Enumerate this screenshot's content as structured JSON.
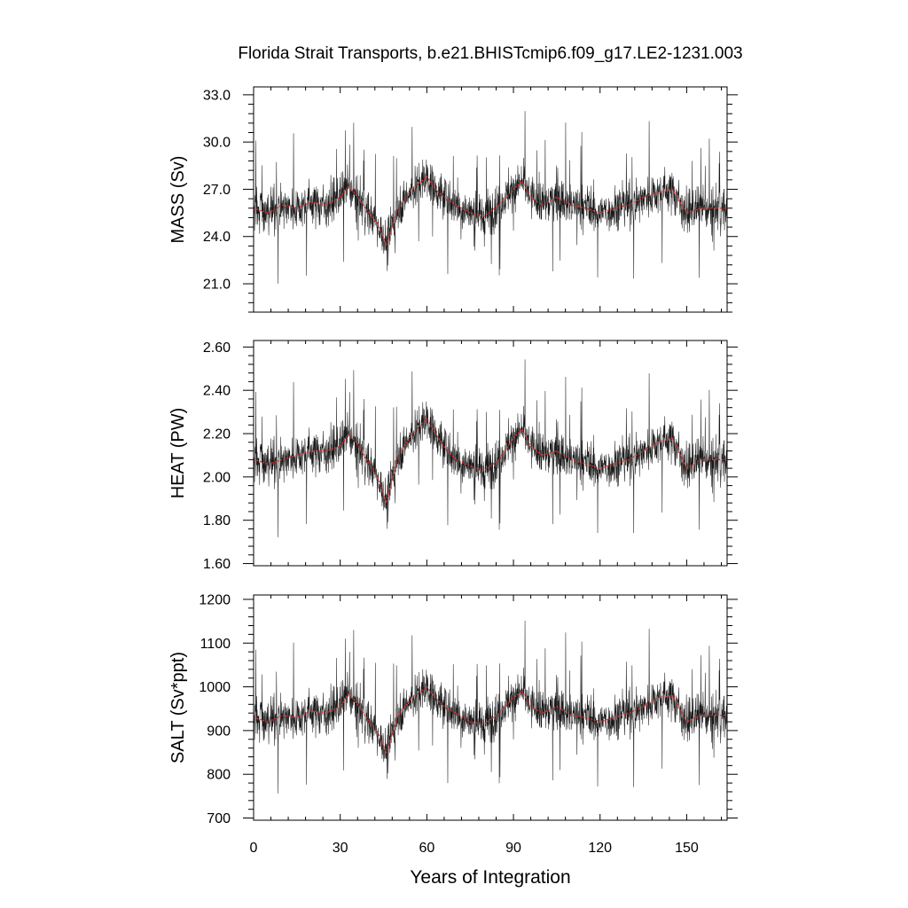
{
  "chart_data": {
    "type": "line",
    "title": "Florida Strait Transports, b.e21.BHISTcmip6.f09_g17.LE2-1231.003",
    "xlabel": "Years of Integration",
    "xlim": [
      0,
      164
    ],
    "xticks": [
      0,
      30,
      60,
      90,
      120,
      150
    ],
    "xtick_labels": [
      "0",
      "30",
      "60",
      "90",
      "120",
      "150"
    ],
    "series_colors": {
      "monthly": "#000000",
      "annual": "#e03030"
    },
    "panels": [
      {
        "ylabel": "MASS (Sv)",
        "ylim": [
          19.2,
          33.5
        ],
        "yticks": [
          21,
          24,
          27,
          30,
          33
        ],
        "ytick_labels": [
          "21.0",
          "24.0",
          "27.0",
          "30.0",
          "33.0"
        ],
        "series": [
          {
            "role": "annual",
            "x": [
              0,
              5,
              10,
              15,
              20,
              25,
              30,
              33,
              36,
              40,
              43,
              46,
              50,
              55,
              60,
              63,
              66,
              70,
              75,
              80,
              85,
              90,
              93,
              96,
              100,
              105,
              110,
              115,
              120,
              125,
              130,
              135,
              140,
              145,
              150,
              155,
              160,
              164
            ],
            "values": [
              25.8,
              25.5,
              26.0,
              25.8,
              26.2,
              26.0,
              26.5,
              27.2,
              26.5,
              25.5,
              24.8,
              23.5,
              25.8,
              27.0,
              27.8,
              27.0,
              26.5,
              26.0,
              25.5,
              25.3,
              26.0,
              27.0,
              27.5,
              26.5,
              26.0,
              26.5,
              26.0,
              25.8,
              25.5,
              25.8,
              26.0,
              26.5,
              26.8,
              27.0,
              25.5,
              25.8,
              25.8,
              25.8
            ]
          }
        ]
      },
      {
        "ylabel": "HEAT (PW)",
        "ylim": [
          1.59,
          2.63
        ],
        "yticks": [
          1.6,
          1.8,
          2.0,
          2.2,
          2.4,
          2.6
        ],
        "ytick_labels": [
          "1.60",
          "1.80",
          "2.00",
          "2.20",
          "2.40",
          "2.60"
        ],
        "series": [
          {
            "role": "annual",
            "x": [
              0,
              5,
              10,
              15,
              20,
              25,
              30,
              33,
              36,
              40,
              43,
              46,
              50,
              55,
              60,
              63,
              66,
              70,
              75,
              80,
              85,
              90,
              93,
              96,
              100,
              105,
              110,
              115,
              120,
              125,
              130,
              135,
              140,
              145,
              150,
              155,
              160,
              164
            ],
            "values": [
              2.08,
              2.06,
              2.08,
              2.1,
              2.12,
              2.12,
              2.14,
              2.2,
              2.15,
              2.06,
              2.0,
              1.88,
              2.1,
              2.2,
              2.27,
              2.2,
              2.14,
              2.08,
              2.05,
              2.03,
              2.08,
              2.18,
              2.22,
              2.14,
              2.1,
              2.12,
              2.08,
              2.06,
              2.04,
              2.06,
              2.08,
              2.12,
              2.16,
              2.18,
              2.04,
              2.08,
              2.08,
              2.08
            ]
          }
        ]
      },
      {
        "ylabel": "SALT (Sv*ppt)",
        "ylim": [
          695,
          1210
        ],
        "yticks": [
          700,
          800,
          900,
          1000,
          1100,
          1200
        ],
        "ytick_labels": [
          "700",
          "800",
          "900",
          "1000",
          "1100",
          "1200"
        ],
        "series": [
          {
            "role": "annual",
            "x": [
              0,
              5,
              10,
              15,
              20,
              25,
              30,
              33,
              36,
              40,
              43,
              46,
              50,
              55,
              60,
              63,
              66,
              70,
              75,
              80,
              85,
              90,
              93,
              96,
              100,
              105,
              110,
              115,
              120,
              125,
              130,
              135,
              140,
              145,
              150,
              155,
              160,
              164
            ],
            "values": [
              930,
              920,
              935,
              930,
              945,
              940,
              955,
              985,
              960,
              920,
              895,
              850,
              935,
              975,
              1000,
              975,
              955,
              940,
              920,
              915,
              940,
              975,
              990,
              955,
              940,
              955,
              935,
              930,
              920,
              930,
              940,
              955,
              975,
              980,
              920,
              935,
              935,
              935
            ]
          }
        ]
      }
    ]
  }
}
